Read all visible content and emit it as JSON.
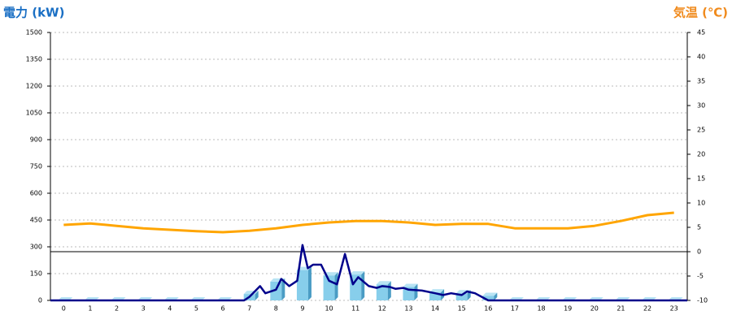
{
  "chart_data": {
    "type": "combo",
    "y_title": "電力 (kW)",
    "y2_title": "気温 (℃)",
    "categories": [
      "0",
      "1",
      "2",
      "3",
      "4",
      "5",
      "6",
      "7",
      "8",
      "9",
      "10",
      "11",
      "12",
      "13",
      "14",
      "15",
      "16",
      "17",
      "18",
      "19",
      "20",
      "21",
      "22",
      "23"
    ],
    "xlim": [
      -0.5,
      23.5
    ],
    "ylim": [
      0,
      1500
    ],
    "yticks": [
      0,
      150,
      300,
      450,
      600,
      750,
      900,
      1050,
      1200,
      1350,
      1500
    ],
    "y2lim": [
      -10,
      45
    ],
    "y2ticks": [
      -10,
      -5,
      0,
      5,
      10,
      15,
      20,
      25,
      30,
      35,
      40,
      45
    ],
    "grid": true,
    "series": [
      {
        "type": "bar",
        "color": "#87ceeb",
        "values": [
          0,
          0,
          0,
          0,
          0,
          0,
          0,
          36,
          105,
          170,
          140,
          145,
          90,
          75,
          45,
          40,
          25,
          0,
          0,
          0,
          0,
          0,
          0,
          0
        ]
      },
      {
        "type": "line",
        "color": "#00008b",
        "x": [
          -0.5,
          6.8,
          7,
          7.4,
          7.6,
          8,
          8.2,
          8.5,
          8.8,
          9,
          9.2,
          9.4,
          9.7,
          10,
          10.3,
          10.6,
          10.9,
          11.1,
          11.5,
          11.8,
          12,
          12.3,
          12.5,
          12.8,
          13,
          13.5,
          14,
          14.3,
          14.6,
          15,
          15.2,
          15.5,
          16,
          23.5
        ],
        "values": [
          0,
          0,
          20,
          80,
          40,
          60,
          120,
          80,
          110,
          310,
          180,
          200,
          200,
          110,
          90,
          260,
          90,
          130,
          80,
          70,
          80,
          75,
          65,
          70,
          60,
          55,
          40,
          30,
          40,
          30,
          50,
          40,
          0,
          0
        ]
      },
      {
        "type": "line",
        "axis": "y2",
        "color": "#ffa500",
        "values": [
          5.5,
          5.8,
          5.3,
          4.8,
          4.5,
          4.2,
          4.0,
          4.3,
          4.8,
          5.5,
          6.0,
          6.3,
          6.3,
          6.0,
          5.5,
          5.7,
          5.7,
          4.8,
          4.8,
          4.8,
          5.3,
          6.3,
          7.5,
          8.0
        ]
      }
    ]
  }
}
